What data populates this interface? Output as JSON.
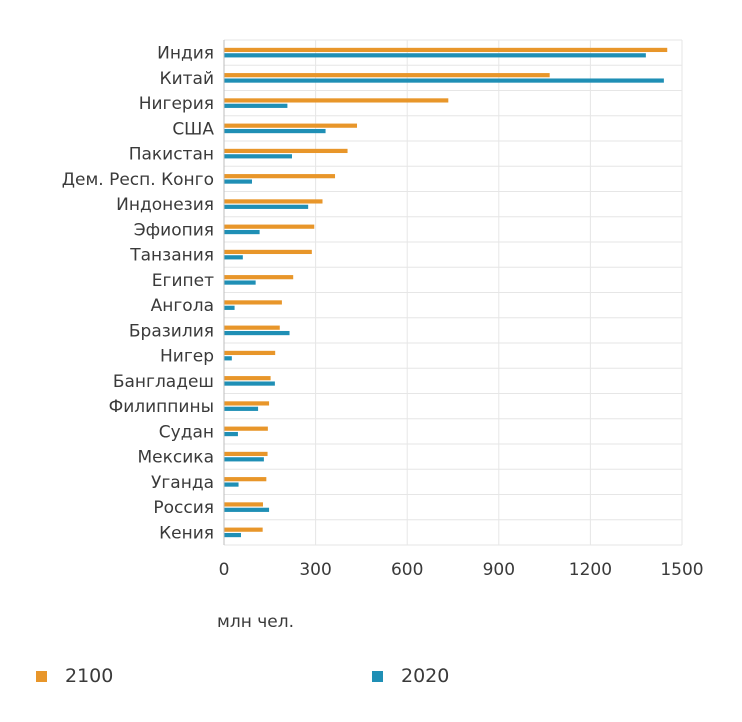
{
  "chart_data": {
    "type": "bar",
    "orientation": "horizontal",
    "categories": [
      "Индия",
      "Китай",
      "Нигерия",
      "США",
      "Пакистан",
      "Дем. Респ. Конго",
      "Индонезия",
      "Эфиопия",
      "Танзания",
      "Египет",
      "Ангола",
      "Бразилия",
      "Нигер",
      "Бангладеш",
      "Филиппины",
      "Судан",
      "Мексика",
      "Уганда",
      "Россия",
      "Кения"
    ],
    "series": [
      {
        "name": "2100",
        "color": "#e8962a",
        "values": [
          1450,
          1065,
          733,
          434,
          403,
          362,
          321,
          294,
          286,
          225,
          188,
          181,
          166,
          151,
          146,
          142,
          141,
          137,
          126,
          125
        ]
      },
      {
        "name": "2020",
        "color": "#1f8fb5",
        "values": [
          1380,
          1439,
          206,
          331,
          221,
          90,
          274,
          115,
          60,
          102,
          33,
          213,
          24,
          165,
          110,
          44,
          129,
          46,
          146,
          54
        ]
      }
    ],
    "xticks": [
      "0",
      "300",
      "600",
      "900",
      "1200",
      "1500"
    ],
    "xlim": [
      0,
      1500
    ],
    "xlabel": "млн чел.",
    "grid": true,
    "legend_position": "bottom"
  }
}
